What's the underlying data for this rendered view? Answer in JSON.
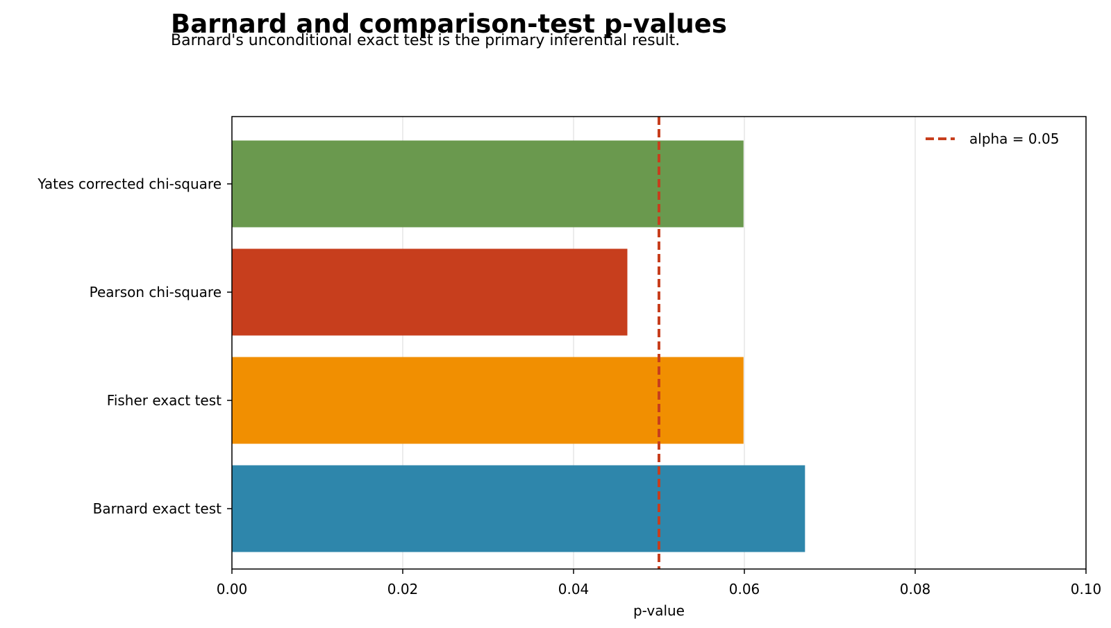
{
  "chart_data": {
    "type": "bar",
    "orientation": "horizontal",
    "title": "Barnard and comparison-test p-values",
    "subtitle": "Barnard's unconditional exact test is the primary inferential result.",
    "xlabel": "p-value",
    "ylabel": "",
    "categories": [
      "Barnard exact test",
      "Fisher exact test",
      "Pearson chi-square",
      "Yates corrected chi-square"
    ],
    "values": [
      0.0671,
      0.0599,
      0.0463,
      0.0599
    ],
    "colors": [
      "#2e86ab",
      "#f18f01",
      "#c73e1d",
      "#6a994e"
    ],
    "xlim": [
      0,
      0.1
    ],
    "x_ticks": [
      "0.00",
      "0.02",
      "0.04",
      "0.06",
      "0.08",
      "0.10"
    ],
    "grid": "vertical",
    "reference_line": {
      "value": 0.05,
      "label": "alpha = 0.05",
      "color": "#c73e1d",
      "style": "dashed"
    },
    "legend": {
      "placement": "top-right",
      "entries": [
        "alpha = 0.05"
      ]
    }
  }
}
